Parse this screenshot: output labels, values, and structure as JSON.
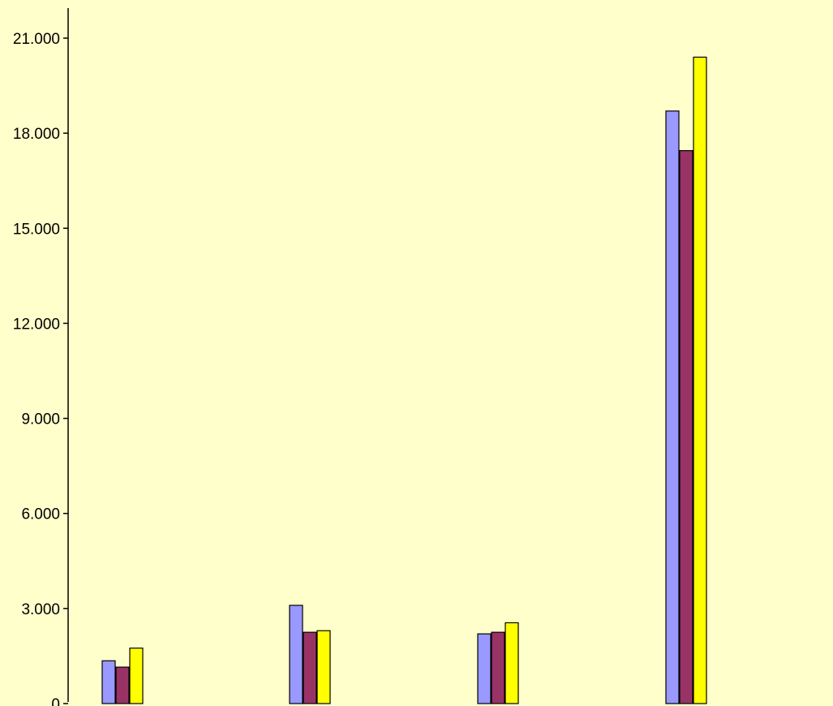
{
  "chart_data": {
    "type": "bar",
    "title": "",
    "xlabel": "",
    "ylabel": "",
    "ylim": [
      0,
      22000
    ],
    "yticks": [
      0,
      3000,
      6000,
      9000,
      12000,
      15000,
      18000,
      21000
    ],
    "ytick_labels": [
      "0",
      "3.000",
      "6.000",
      "9.000",
      "12.000",
      "15.000",
      "18.000",
      "21.000"
    ],
    "grid": false,
    "legend": "none",
    "categories": [
      "",
      "",
      "",
      ""
    ],
    "series": [
      {
        "color": "#9999FF",
        "values": [
          1350,
          3100,
          2200,
          18700
        ]
      },
      {
        "color": "#993366",
        "values": [
          1150,
          2250,
          2250,
          17450
        ]
      },
      {
        "color": "#FFFF00",
        "values": [
          1750,
          2300,
          2550,
          20400
        ]
      }
    ],
    "background_color": "#FFFFCC"
  }
}
